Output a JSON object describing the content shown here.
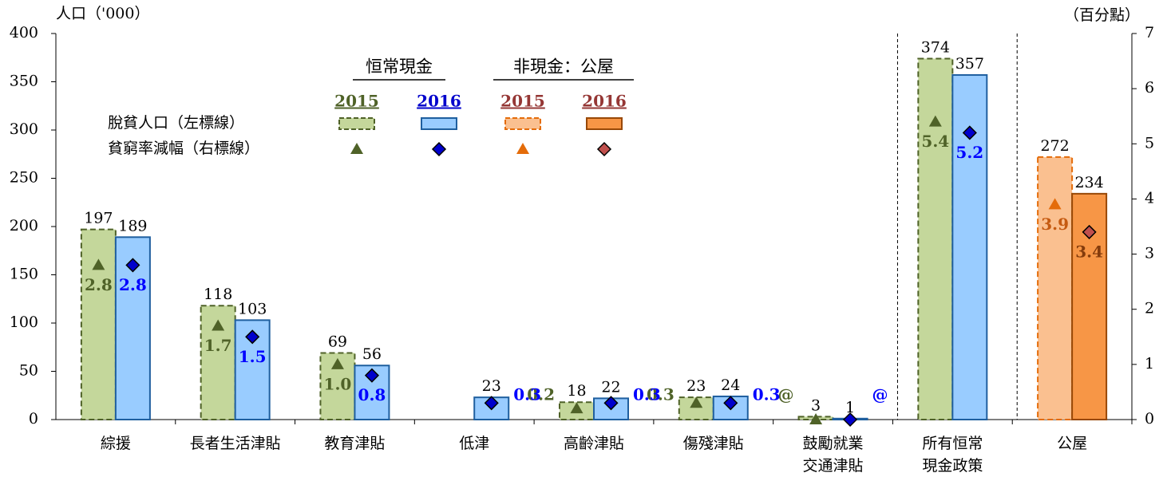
{
  "chart_data": {
    "type": "bar",
    "ylabel": "人口（'000）",
    "y2label": "（百分點）",
    "categories": [
      [
        "綜援"
      ],
      [
        "長者生活津貼"
      ],
      [
        "教育津貼"
      ],
      [
        "低津"
      ],
      [
        "高齡津貼"
      ],
      [
        "傷殘津貼"
      ],
      [
        "鼓勵就業",
        "交通津貼"
      ],
      [
        "所有恒常",
        "現金政策"
      ],
      [
        "公屋"
      ]
    ],
    "ylim": [
      0,
      400
    ],
    "yticks": [
      0,
      50,
      100,
      150,
      200,
      250,
      300,
      350,
      400
    ],
    "y2lim": [
      0,
      7
    ],
    "y2ticks": [
      0,
      1,
      2,
      3,
      4,
      5,
      6,
      7
    ],
    "legend": {
      "groups": [
        "恒常現金",
        "非現金：公屋"
      ],
      "rows": [
        "脫貧人口（左標線）",
        "貧窮率減幅（右標線）"
      ]
    },
    "series": [
      {
        "name": "2015",
        "color": "#c4d79b",
        "stroke": "#4f6228",
        "dashed": true,
        "text_color": "#4f6228",
        "values": [
          197,
          118,
          69,
          null,
          18,
          23,
          3,
          374,
          null
        ]
      },
      {
        "name": "2016",
        "color": "#99ccff",
        "stroke": "#1f5f9f",
        "dashed": false,
        "text_color": "#0000cc",
        "values": [
          189,
          103,
          56,
          23,
          22,
          24,
          1,
          357,
          null
        ]
      },
      {
        "name": "2015",
        "color": "#fac090",
        "stroke": "#e46c0a",
        "dashed": true,
        "text_color": "#953735",
        "values": [
          null,
          null,
          null,
          null,
          null,
          null,
          null,
          null,
          272
        ]
      },
      {
        "name": "2016",
        "color": "#f79646",
        "stroke": "#984807",
        "dashed": false,
        "text_color": "#953735",
        "values": [
          null,
          null,
          null,
          null,
          null,
          null,
          null,
          null,
          234
        ]
      },
      {
        "axis": "y2",
        "marker": "triangle",
        "color": "#4f6228",
        "text_color": "#4f6228",
        "values": [
          2.8,
          1.7,
          1.0,
          null,
          0.2,
          0.3,
          0,
          5.4,
          null
        ],
        "value_labels": [
          "2.8",
          "1.7",
          "1.0",
          null,
          "0.2",
          "0.3",
          "@",
          "5.4",
          null
        ]
      },
      {
        "axis": "y2",
        "marker": "diamond",
        "color": "#0000cc",
        "text_color": "#0000ff",
        "values": [
          2.8,
          1.5,
          0.8,
          0.3,
          0.3,
          0.3,
          0,
          5.2,
          null
        ],
        "value_labels": [
          "2.8",
          "1.5",
          "0.8",
          "0.3",
          "0.3",
          "0.3",
          "@",
          "5.2",
          null
        ]
      },
      {
        "axis": "y2",
        "marker": "triangle",
        "color": "#e46c0a",
        "text_color": "#c55a11",
        "values": [
          null,
          null,
          null,
          null,
          null,
          null,
          null,
          null,
          3.9
        ],
        "value_labels": [
          null,
          null,
          null,
          null,
          null,
          null,
          null,
          null,
          "3.9"
        ]
      },
      {
        "axis": "y2",
        "marker": "diamond",
        "color": "#c0504d",
        "text_color": "#843c0c",
        "values": [
          null,
          null,
          null,
          null,
          null,
          null,
          null,
          null,
          3.4
        ],
        "value_labels": [
          null,
          null,
          null,
          null,
          null,
          null,
          null,
          null,
          "3.4"
        ]
      }
    ]
  }
}
